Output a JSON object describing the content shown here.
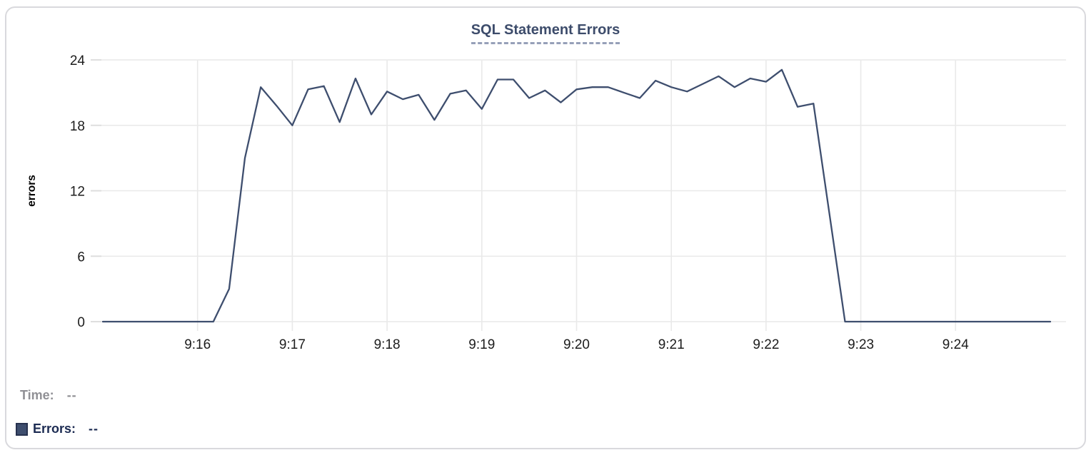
{
  "card": {
    "legend": {
      "time_label": "Time:",
      "time_value": "--",
      "errors_label": "Errors:",
      "errors_value": "--",
      "time_color": "#909095",
      "errors_color": "#1c2b52",
      "swatch_color": "#3e4e6e"
    }
  },
  "chart_data": {
    "type": "line",
    "title": "SQL Statement Errors",
    "xlabel": "",
    "ylabel": "errors",
    "ylim": [
      0,
      24
    ],
    "y_ticks": [
      0,
      6,
      12,
      18,
      24
    ],
    "grid": true,
    "legend_position": "bottom-left",
    "colors": {
      "line": "#3e4e6e",
      "title": "#3d4c6b",
      "title_underline": "#96a0b8",
      "grid": "#e9e9e9",
      "tick_mark": "#dedede",
      "axis_text": "#1c1c1c",
      "ylabel_text": "#000000"
    },
    "x_axis": {
      "start_time": "9:15:00",
      "end_time": "9:25:00",
      "range_seconds": [
        0,
        600
      ],
      "tick_labels": [
        "9:16",
        "9:17",
        "9:18",
        "9:19",
        "9:20",
        "9:21",
        "9:22",
        "9:23",
        "9:24"
      ],
      "tick_seconds": [
        60,
        120,
        180,
        240,
        300,
        360,
        420,
        480,
        540
      ]
    },
    "series": [
      {
        "name": "Errors",
        "color": "#3e4e6e",
        "seconds_from_start": [
          0,
          10,
          20,
          30,
          40,
          50,
          60,
          70,
          80,
          90,
          100,
          110,
          120,
          130,
          140,
          150,
          160,
          170,
          180,
          190,
          200,
          210,
          220,
          230,
          240,
          250,
          260,
          270,
          280,
          290,
          300,
          310,
          320,
          330,
          340,
          350,
          360,
          370,
          380,
          390,
          400,
          410,
          420,
          430,
          440,
          450,
          460,
          470,
          480,
          490,
          500,
          510,
          520,
          530,
          540,
          550,
          560,
          570,
          580,
          590,
          600
        ],
        "values": [
          0,
          0,
          0,
          0,
          0,
          0,
          0,
          0,
          3,
          15,
          21.5,
          19.8,
          18,
          21.3,
          21.6,
          18.3,
          22.3,
          19,
          21.1,
          20.4,
          20.8,
          18.5,
          20.9,
          21.2,
          19.5,
          22.2,
          22.2,
          20.5,
          21.2,
          20.1,
          21.3,
          21.5,
          21.5,
          21,
          20.5,
          22.1,
          21.5,
          21.1,
          21.8,
          22.5,
          21.5,
          22.3,
          22,
          23.1,
          19.7,
          20,
          10,
          0,
          0,
          0,
          0,
          0,
          0,
          0,
          0,
          0,
          0,
          0,
          0,
          0,
          0
        ]
      }
    ]
  }
}
